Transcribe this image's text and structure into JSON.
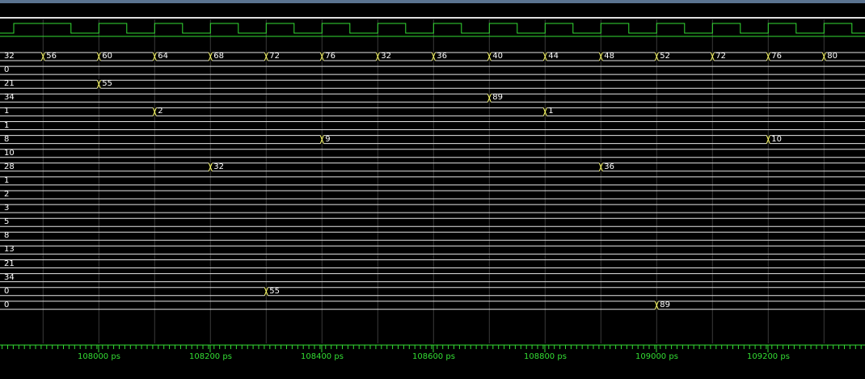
{
  "colors": {
    "background": "#000000",
    "signal": "#33dd33",
    "bus_line": "#e6e6e6",
    "transition": "#ffff66",
    "grid": "#3a3a3a",
    "value_text": "#ffffff",
    "time_text": "#33dd33"
  },
  "waveform": {
    "clock": {
      "name": "clock",
      "edge_count": 31
    },
    "buses": [
      {
        "segments": [
          {
            "value": "32"
          },
          {
            "value": "56"
          },
          {
            "value": "60"
          },
          {
            "value": "64"
          },
          {
            "value": "68"
          },
          {
            "value": "72"
          },
          {
            "value": "76"
          },
          {
            "value": "32"
          },
          {
            "value": "36"
          },
          {
            "value": "40"
          },
          {
            "value": "44"
          },
          {
            "value": "48"
          },
          {
            "value": "52"
          },
          {
            "value": "72"
          },
          {
            "value": "76"
          },
          {
            "value": "80"
          }
        ]
      },
      {
        "segments": [
          {
            "value": "0"
          }
        ]
      },
      {
        "segments": [
          {
            "value": "21"
          },
          {
            "value": "55"
          }
        ]
      },
      {
        "segments": [
          {
            "value": "34"
          },
          {
            "value": "89"
          }
        ]
      },
      {
        "segments": [
          {
            "value": "1"
          },
          {
            "value": "2"
          },
          {
            "value": "1"
          }
        ]
      },
      {
        "segments": [
          {
            "value": "1"
          }
        ]
      },
      {
        "segments": [
          {
            "value": "8"
          },
          {
            "value": "9"
          },
          {
            "value": "10"
          }
        ]
      },
      {
        "segments": [
          {
            "value": "10"
          }
        ]
      },
      {
        "segments": [
          {
            "value": "28"
          },
          {
            "value": "32"
          },
          {
            "value": "36"
          }
        ]
      },
      {
        "segments": [
          {
            "value": "1"
          }
        ]
      },
      {
        "segments": [
          {
            "value": "2"
          }
        ]
      },
      {
        "segments": [
          {
            "value": "3"
          }
        ]
      },
      {
        "segments": [
          {
            "value": "5"
          }
        ]
      },
      {
        "segments": [
          {
            "value": "8"
          }
        ]
      },
      {
        "segments": [
          {
            "value": "13"
          }
        ]
      },
      {
        "segments": [
          {
            "value": "21"
          }
        ]
      },
      {
        "segments": [
          {
            "value": "34"
          }
        ]
      },
      {
        "segments": [
          {
            "value": "0"
          },
          {
            "value": "55"
          }
        ]
      },
      {
        "segments": [
          {
            "value": "0"
          },
          {
            "value": "89"
          }
        ]
      }
    ]
  },
  "timeline": {
    "unit": "ps",
    "ticks": [
      {
        "label": "108000 ps"
      },
      {
        "label": "108200 ps"
      },
      {
        "label": "108400 ps"
      },
      {
        "label": "108600 ps"
      },
      {
        "label": "108800 ps"
      },
      {
        "label": "109000 ps"
      },
      {
        "label": "109200 ps"
      }
    ]
  }
}
